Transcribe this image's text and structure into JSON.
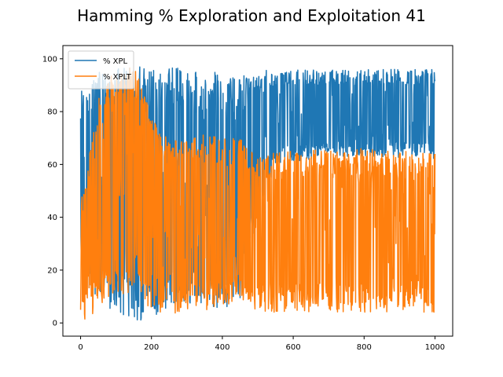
{
  "chart_data": {
    "type": "line",
    "title": "Hamming % Exploration and Exploitation 41",
    "xlabel": "",
    "ylabel": "",
    "xlim": [
      -50,
      1050
    ],
    "ylim": [
      -5,
      105
    ],
    "x_ticks": [
      0,
      200,
      400,
      600,
      800,
      1000
    ],
    "y_ticks": [
      0,
      20,
      40,
      60,
      80,
      100
    ],
    "grid": false,
    "legend": {
      "placement": "top-left"
    },
    "x_range": [
      0,
      1000
    ],
    "series": [
      {
        "name": "% XPL",
        "color": "#1f77b4",
        "envelope": [
          {
            "x": 0,
            "low": 20,
            "high": 90
          },
          {
            "x": 50,
            "low": 5,
            "high": 95
          },
          {
            "x": 100,
            "low": 2,
            "high": 98
          },
          {
            "x": 150,
            "low": 0,
            "high": 98
          },
          {
            "x": 200,
            "low": 2,
            "high": 96
          },
          {
            "x": 250,
            "low": 5,
            "high": 98
          },
          {
            "x": 300,
            "low": 8,
            "high": 96
          },
          {
            "x": 350,
            "low": 5,
            "high": 95
          },
          {
            "x": 400,
            "low": 5,
            "high": 95
          },
          {
            "x": 450,
            "low": 8,
            "high": 93
          },
          {
            "x": 480,
            "low": 30,
            "high": 95
          },
          {
            "x": 550,
            "low": 60,
            "high": 96
          },
          {
            "x": 700,
            "low": 63,
            "high": 96
          },
          {
            "x": 850,
            "low": 63,
            "high": 96
          },
          {
            "x": 1000,
            "low": 62,
            "high": 96
          }
        ]
      },
      {
        "name": "% XPLT",
        "color": "#ff7f0e",
        "envelope": [
          {
            "x": 0,
            "low": 0,
            "high": 45
          },
          {
            "x": 50,
            "low": 5,
            "high": 85
          },
          {
            "x": 100,
            "low": 10,
            "high": 98
          },
          {
            "x": 150,
            "low": 12,
            "high": 98
          },
          {
            "x": 200,
            "low": 5,
            "high": 80
          },
          {
            "x": 250,
            "low": 3,
            "high": 70
          },
          {
            "x": 300,
            "low": 5,
            "high": 70
          },
          {
            "x": 350,
            "low": 5,
            "high": 72
          },
          {
            "x": 400,
            "low": 5,
            "high": 70
          },
          {
            "x": 450,
            "low": 8,
            "high": 70
          },
          {
            "x": 480,
            "low": 5,
            "high": 65
          },
          {
            "x": 550,
            "low": 4,
            "high": 65
          },
          {
            "x": 700,
            "low": 4,
            "high": 66
          },
          {
            "x": 850,
            "low": 4,
            "high": 66
          },
          {
            "x": 1000,
            "low": 4,
            "high": 64
          }
        ]
      }
    ]
  }
}
